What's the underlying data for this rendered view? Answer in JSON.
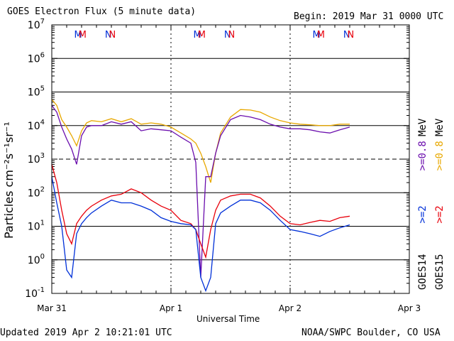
{
  "chart_data": {
    "type": "line",
    "title": "GOES Electron Flux (5 minute data)",
    "begin_label": "Begin: 2019 Mar 31 0000 UTC",
    "xlabel": "Universal Time",
    "ylabel": "Particles cm⁻²s⁻¹sr⁻¹",
    "yscale": "log",
    "ylim": [
      0.1,
      10000000
    ],
    "yticks": [
      {
        "base": "10",
        "exp": "-1"
      },
      {
        "base": "10",
        "exp": "0"
      },
      {
        "base": "10",
        "exp": "1"
      },
      {
        "base": "10",
        "exp": "2"
      },
      {
        "base": "10",
        "exp": "3"
      },
      {
        "base": "10",
        "exp": "4"
      },
      {
        "base": "10",
        "exp": "5"
      },
      {
        "base": "10",
        "exp": "6"
      },
      {
        "base": "10",
        "exp": "7"
      }
    ],
    "xlim": [
      "2019-03-31 00:00",
      "2019-04-03 00:00"
    ],
    "xticks": [
      "Mar 31",
      "Apr 1",
      "Apr 2",
      "Apr 3"
    ],
    "hours_per_day_tick": 24,
    "threshold_line": 1000,
    "top_markers": [
      "M",
      "M",
      "N",
      "N",
      "M",
      "M",
      "N",
      "N",
      "M",
      "M",
      "N",
      "N"
    ],
    "series": [
      {
        "name": "GOES15 >=0.8 MeV",
        "color": "#e8a800",
        "x": [
          0,
          1,
          2,
          3,
          4,
          5,
          6,
          7,
          8,
          10,
          12,
          14,
          16,
          18,
          20,
          22,
          24,
          26,
          28,
          29,
          30,
          31,
          32,
          33,
          34,
          36,
          38,
          40,
          42,
          44,
          46,
          48,
          50,
          52,
          54,
          56,
          58,
          60
        ],
        "y": [
          60000,
          40000,
          15000,
          9000,
          5000,
          2500,
          7000,
          12000,
          14000,
          13000,
          16000,
          13000,
          16000,
          11000,
          12000,
          11000,
          9000,
          6000,
          4000,
          3000,
          1500,
          600,
          200,
          1500,
          6000,
          18000,
          30000,
          29000,
          25000,
          18000,
          14000,
          12000,
          11000,
          10500,
          10000,
          10000,
          11000,
          11000
        ]
      },
      {
        "name": "GOES14 >=0.8 MeV",
        "color": "#6a0dad",
        "x": [
          0,
          1,
          2,
          3,
          4,
          5,
          6,
          7,
          8,
          10,
          12,
          14,
          16,
          18,
          20,
          22,
          24,
          26,
          28,
          29,
          30,
          31,
          32,
          33,
          34,
          36,
          38,
          40,
          42,
          44,
          46,
          48,
          50,
          52,
          54,
          56,
          58,
          60
        ],
        "y": [
          40000,
          25000,
          9000,
          4000,
          2000,
          700,
          5000,
          9000,
          10000,
          10000,
          13000,
          11000,
          13000,
          7000,
          8000,
          7500,
          7000,
          4500,
          3000,
          800,
          0.3,
          300,
          300,
          1500,
          5000,
          15000,
          20000,
          18000,
          15000,
          11000,
          9000,
          8000,
          8000,
          7500,
          6500,
          6000,
          7500,
          9000
        ]
      },
      {
        "name": "GOES15 >=2 MeV",
        "color": "#e8000b",
        "x": [
          0,
          1,
          2,
          3,
          4,
          5,
          6,
          7,
          8,
          10,
          12,
          14,
          16,
          18,
          20,
          22,
          24,
          26,
          28,
          29,
          30,
          31,
          32,
          33,
          34,
          36,
          38,
          40,
          42,
          44,
          46,
          48,
          50,
          52,
          54,
          56,
          58,
          60
        ],
        "y": [
          700,
          200,
          30,
          6,
          3,
          12,
          20,
          30,
          40,
          60,
          80,
          90,
          130,
          100,
          60,
          40,
          30,
          15,
          12,
          8,
          3,
          1.2,
          8,
          30,
          60,
          80,
          90,
          90,
          70,
          40,
          20,
          12,
          11,
          13,
          15,
          14,
          18,
          20
        ]
      },
      {
        "name": "GOES14 >=2 MeV",
        "color": "#0030d8",
        "x": [
          0,
          1,
          2,
          3,
          4,
          5,
          6,
          7,
          8,
          10,
          12,
          14,
          16,
          18,
          20,
          22,
          24,
          26,
          28,
          29,
          30,
          31,
          32,
          33,
          34,
          36,
          38,
          40,
          42,
          44,
          46,
          48,
          50,
          52,
          54,
          56,
          58,
          60
        ],
        "y": [
          300,
          50,
          10,
          0.5,
          0.3,
          6,
          12,
          18,
          25,
          40,
          60,
          50,
          50,
          40,
          30,
          18,
          14,
          12,
          11,
          8,
          0.3,
          0.12,
          0.3,
          12,
          25,
          40,
          60,
          60,
          50,
          30,
          15,
          8,
          7,
          6,
          5,
          7,
          9,
          11
        ]
      }
    ],
    "legend": [
      {
        "sat": "GOES14",
        "items": [
          {
            "text": ">=2",
            "color": "#0030d8"
          },
          {
            "text": ">=0.8",
            "color": "#6a0dad"
          }
        ]
      },
      {
        "sat": "GOES15",
        "items": [
          {
            "text": ">=2",
            "color": "#e8000b"
          },
          {
            "text": ">=0.8",
            "color": "#e8a800"
          }
        ]
      }
    ],
    "unit": "MeV",
    "grid": true
  },
  "footer": {
    "updated": "Updated 2019 Apr  2 10:21:01 UTC",
    "credit": "NOAA/SWPC Boulder, CO USA"
  }
}
